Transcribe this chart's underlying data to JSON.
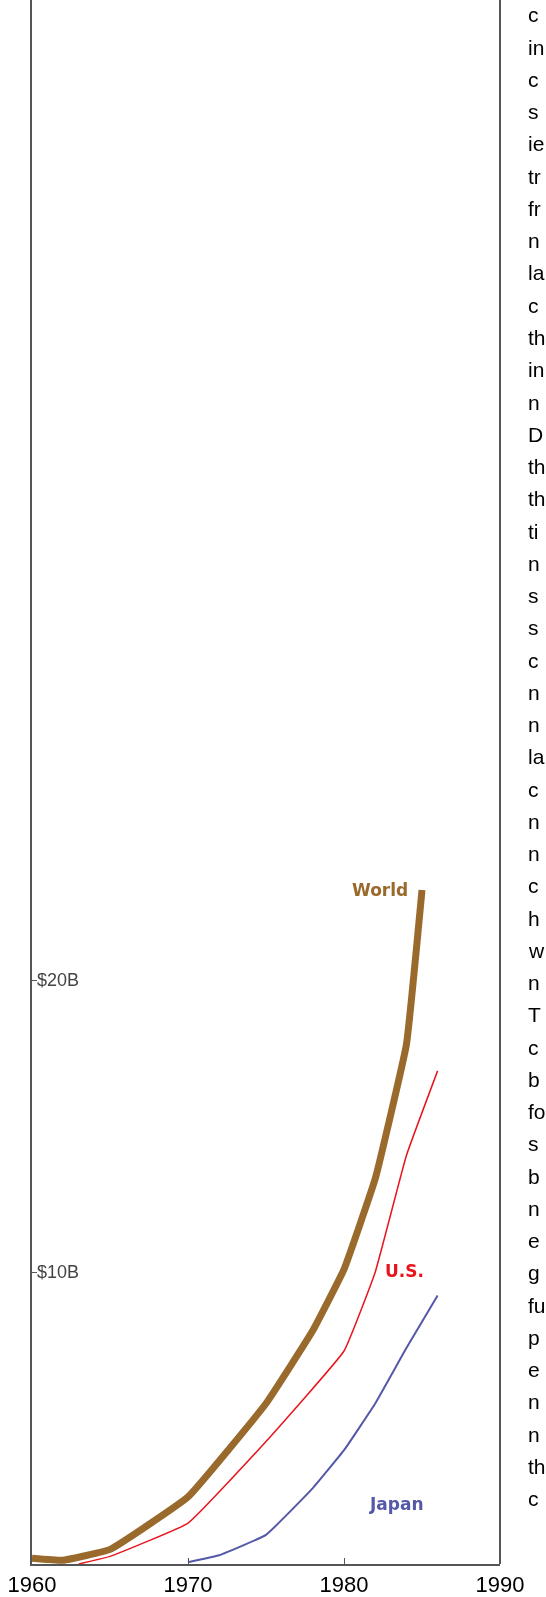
{
  "chart_data": {
    "type": "line",
    "x": [
      1960,
      1962,
      1965,
      1970,
      1975,
      1978,
      1980,
      1982,
      1984,
      1985
    ],
    "xlim": [
      1960,
      1990
    ],
    "xticks": [
      1960,
      1970,
      1980,
      1990
    ],
    "ylim": [
      0,
      53.6
    ],
    "yticks": [
      {
        "value": 10,
        "label": "$10B"
      },
      {
        "value": 20,
        "label": "$20B"
      }
    ],
    "legend": false,
    "marker": "none",
    "line_style": "solid",
    "series": [
      {
        "name": "World",
        "color": "#9a6a2c",
        "values": [
          0.2,
          0.13,
          0.5,
          2.3,
          5.5,
          8.0,
          10.1,
          13.2,
          17.8,
          23.1
        ]
      },
      {
        "name": "U.S.",
        "color": "#e8141c",
        "x": [
          1963,
          1965,
          1970,
          1975,
          1980,
          1982,
          1984,
          1986
        ],
        "values": [
          0.0,
          0.26,
          1.4,
          4.2,
          7.3,
          10.0,
          14.0,
          16.9
        ]
      },
      {
        "name": "Japan",
        "color": "#5458a8",
        "x": [
          1970,
          1972,
          1975,
          1978,
          1980,
          1982,
          1984,
          1986
        ],
        "values": [
          0.06,
          0.3,
          1.0,
          2.6,
          3.9,
          5.5,
          7.4,
          9.2
        ]
      }
    ],
    "annotations": [
      "c",
      "in",
      "c",
      "s",
      "ie",
      "tr",
      "fr",
      "n",
      "la",
      "c",
      "th",
      "in",
      "n",
      "D",
      "th",
      "th",
      "ti",
      "n",
      "s",
      "s",
      "c",
      "n",
      "n",
      "la",
      "c",
      "n",
      "n",
      "c",
      "h",
      "w",
      "n",
      "T",
      "c",
      "b",
      "fo",
      "s",
      "b",
      "n",
      "e",
      "g",
      "fu",
      "p",
      "e",
      "n",
      "n",
      "th",
      "c"
    ]
  }
}
